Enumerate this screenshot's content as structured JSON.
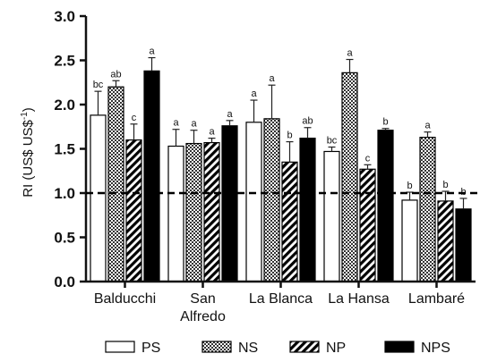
{
  "chart_data": {
    "type": "bar",
    "ylabel": "RI (US$ US$",
    "ylabel_sup": "-1",
    "ylabel_close": ")",
    "ylim": [
      0,
      3.0
    ],
    "yticks": [
      "0.0",
      "0.5",
      "1.0",
      "1.5",
      "2.0",
      "2.5",
      "3.0"
    ],
    "reference_line": 1.0,
    "categories": [
      [
        "Balducchi"
      ],
      [
        "San",
        "Alfredo"
      ],
      [
        "La Blanca"
      ],
      [
        "La Hansa"
      ],
      [
        "Lambaré"
      ]
    ],
    "legend_placement": "bottom",
    "series": [
      {
        "name": "PS",
        "pattern": "white",
        "values": [
          1.88,
          1.53,
          1.8,
          1.47,
          0.92
        ],
        "errors": [
          0.27,
          0.19,
          0.25,
          0.05,
          0.09
        ],
        "sig": [
          "bc",
          "a",
          "a",
          "bc",
          "b"
        ]
      },
      {
        "name": "NS",
        "pattern": "checker",
        "values": [
          2.2,
          1.56,
          1.84,
          2.36,
          1.63
        ],
        "errors": [
          0.07,
          0.15,
          0.38,
          0.15,
          0.06
        ],
        "sig": [
          "ab",
          "a",
          "a",
          "a",
          "a"
        ]
      },
      {
        "name": "NP",
        "pattern": "stripe",
        "values": [
          1.6,
          1.57,
          1.35,
          1.27,
          0.91
        ],
        "errors": [
          0.18,
          0.05,
          0.23,
          0.05,
          0.11
        ],
        "sig": [
          "c",
          "a",
          "b",
          "c",
          "b"
        ]
      },
      {
        "name": "NPS",
        "pattern": "black",
        "values": [
          2.38,
          1.76,
          1.62,
          1.71,
          0.82
        ],
        "errors": [
          0.15,
          0.06,
          0.12,
          0.02,
          0.12
        ],
        "sig": [
          "a",
          "a",
          "ab",
          "b",
          "b"
        ]
      }
    ]
  }
}
